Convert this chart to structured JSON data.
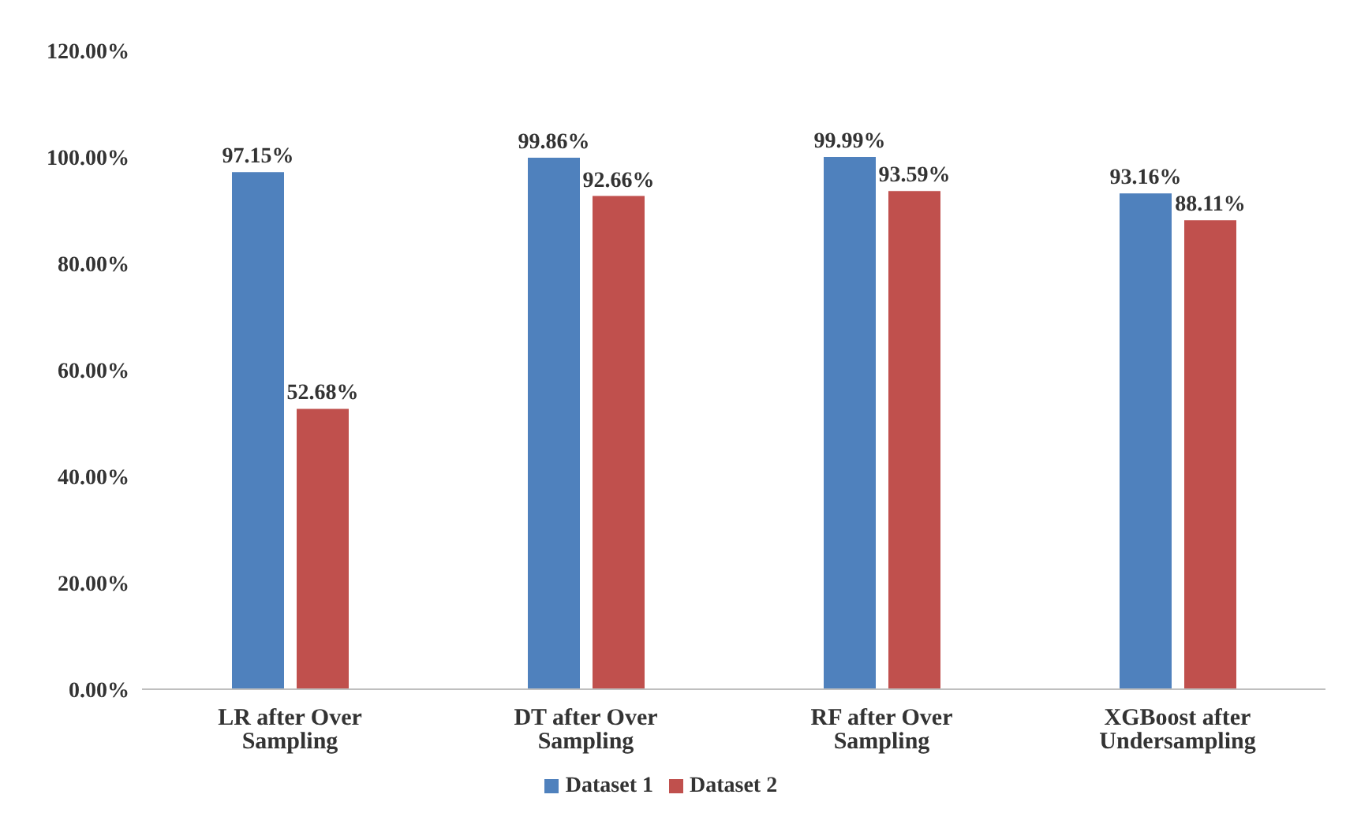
{
  "chart_data": {
    "type": "bar",
    "categories": [
      "LR after Over Sampling",
      "DT after Over Sampling",
      "RF after Over Sampling",
      "XGBoost after Undersampling"
    ],
    "series": [
      {
        "name": "Dataset 1",
        "color": "#4f81bd",
        "values": [
          97.15,
          99.86,
          99.99,
          93.16
        ],
        "value_labels": [
          "97.15%",
          "99.86%",
          "99.99%",
          "93.16%"
        ]
      },
      {
        "name": "Dataset 2",
        "color": "#c0504d",
        "values": [
          52.68,
          92.66,
          93.59,
          88.11
        ],
        "value_labels": [
          "52.68%",
          "92.66%",
          "93.59%",
          "88.11%"
        ]
      }
    ],
    "ylim": [
      0,
      120
    ],
    "yticks": [
      {
        "value": 0,
        "label": "0.00%"
      },
      {
        "value": 20,
        "label": "20.00%"
      },
      {
        "value": 40,
        "label": "40.00%"
      },
      {
        "value": 60,
        "label": "60.00%"
      },
      {
        "value": 80,
        "label": "80.00%"
      },
      {
        "value": 100,
        "label": "100.00%"
      },
      {
        "value": 120,
        "label": "120.00%"
      }
    ],
    "grid": false,
    "legend": "bottom"
  }
}
